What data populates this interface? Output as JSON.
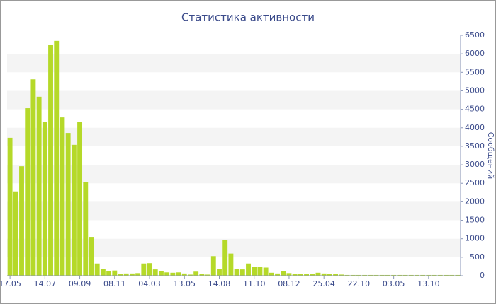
{
  "chart_data": {
    "type": "bar",
    "title": "Статистика активности",
    "y_label": "Сообщений",
    "color": "#b5d929",
    "grid": true,
    "y_axis_side": "right",
    "categories": [
      "17.05",
      null,
      null,
      null,
      null,
      null,
      "14.07",
      null,
      null,
      null,
      null,
      null,
      "09.09",
      null,
      null,
      null,
      null,
      null,
      "08.11",
      null,
      null,
      null,
      null,
      null,
      "04.03",
      null,
      null,
      null,
      null,
      null,
      "13.05",
      null,
      null,
      null,
      null,
      null,
      "14.08",
      null,
      null,
      null,
      null,
      null,
      "11.10",
      null,
      null,
      null,
      null,
      null,
      "08.12",
      null,
      null,
      null,
      null,
      null,
      "25.04",
      null,
      null,
      null,
      null,
      null,
      "22.10",
      null,
      null,
      null,
      null,
      null,
      "03.05",
      null,
      null,
      null,
      null,
      null,
      "13.10",
      null,
      null,
      null,
      null,
      null
    ],
    "values": [
      3730,
      2280,
      2960,
      4530,
      5310,
      4840,
      4150,
      6250,
      6350,
      4280,
      3860,
      3540,
      4150,
      2540,
      1050,
      330,
      190,
      130,
      140,
      50,
      60,
      60,
      70,
      330,
      340,
      170,
      130,
      90,
      80,
      90,
      60,
      30,
      110,
      40,
      30,
      530,
      190,
      960,
      600,
      180,
      170,
      330,
      230,
      240,
      220,
      80,
      60,
      120,
      70,
      50,
      40,
      40,
      50,
      80,
      60,
      40,
      40,
      30,
      20,
      20,
      20,
      20,
      20,
      20,
      20,
      20,
      20,
      20,
      20,
      20,
      20,
      20,
      20,
      20,
      20,
      20,
      20,
      20
    ],
    "ylim": [
      0,
      6500
    ],
    "yticks": [
      0,
      500,
      1000,
      1500,
      2000,
      2500,
      3000,
      3500,
      4000,
      4500,
      5000,
      5500,
      6000,
      6500
    ]
  }
}
